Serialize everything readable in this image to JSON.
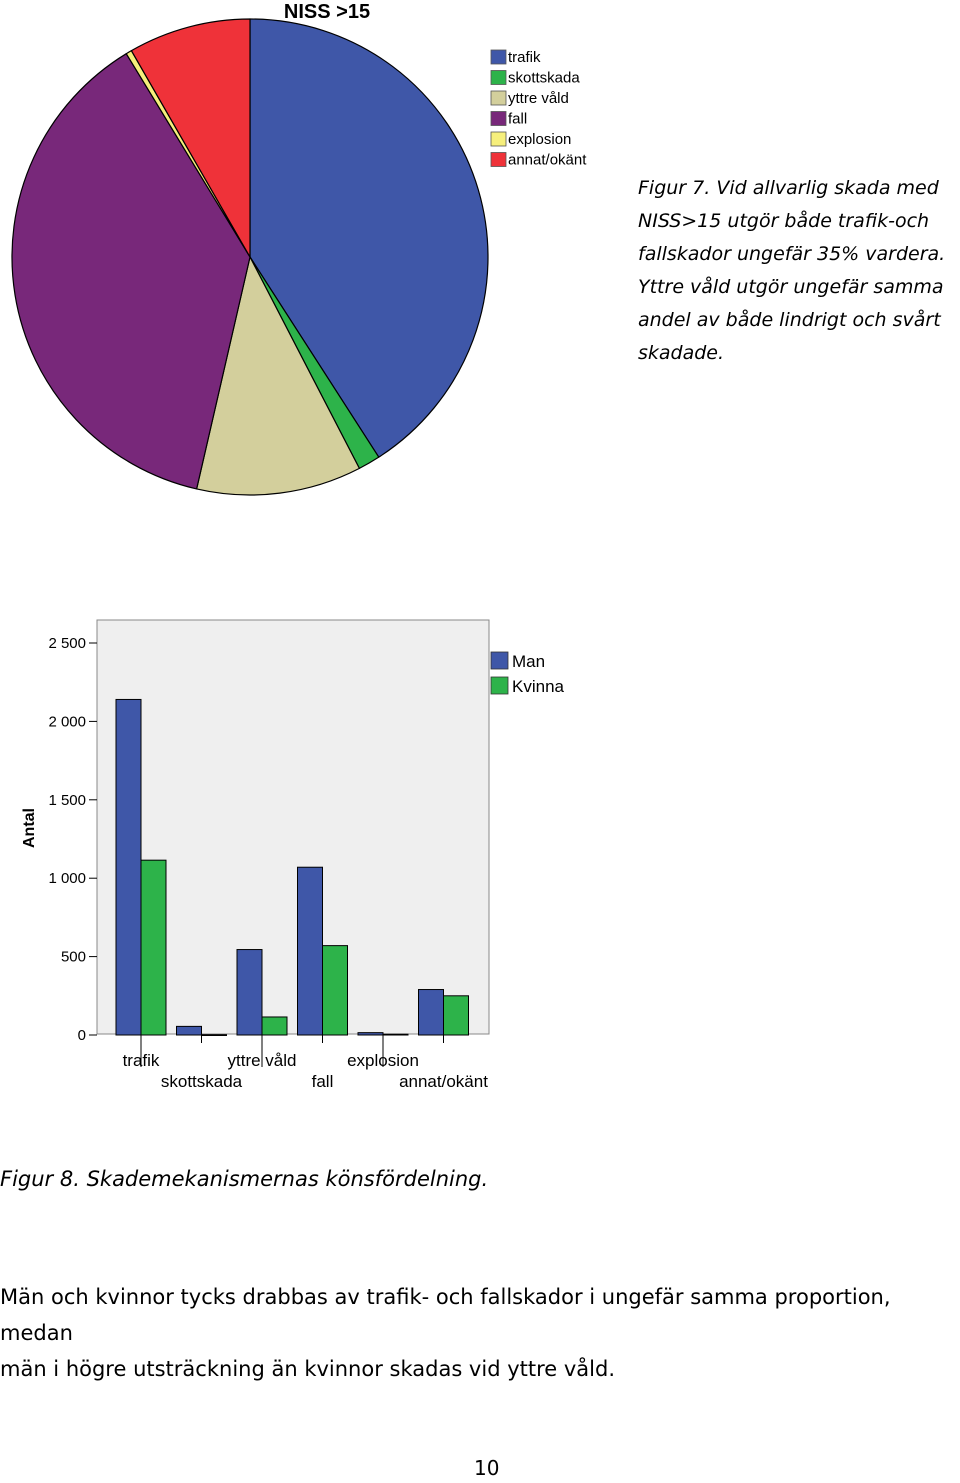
{
  "colors": {
    "trafik": "#3f57a8",
    "skottskada": "#2db34a",
    "yttre_vald": "#d3cf9c",
    "fall": "#78287a",
    "explosion": "#f6ef7c",
    "annat": "#ef3239",
    "man": "#3f57a8",
    "kvinna": "#2db34a",
    "plot_bg": "#efefef"
  },
  "chart_data": [
    {
      "type": "pie",
      "title": "NISS >15",
      "labels": [
        "trafik",
        "skottskada",
        "yttre våld",
        "fall",
        "explosion",
        "annat/okänt"
      ],
      "values": [
        40.9,
        1.5,
        11.2,
        37.7,
        0.4,
        8.3
      ],
      "legend_position": "top-right"
    },
    {
      "type": "bar",
      "ylabel": "Antal",
      "categories": [
        "trafik",
        "skottskada",
        "yttre våld",
        "fall",
        "explosion",
        "annat/okänt"
      ],
      "series": [
        {
          "name": "Man",
          "values": [
            2140,
            55,
            545,
            1070,
            15,
            290
          ]
        },
        {
          "name": "Kvinna",
          "values": [
            1115,
            2,
            115,
            570,
            5,
            250
          ]
        }
      ],
      "ylim": [
        0,
        2500
      ],
      "yticks": [
        0,
        500,
        1000,
        1500,
        2000,
        2500
      ],
      "ytick_labels": [
        "0",
        "500",
        "1 000",
        "1 500",
        "2 000",
        "2 500"
      ],
      "legend_position": "top-right"
    }
  ],
  "captions": {
    "figur7": [
      "Figur 7. Vid allvarlig skada med",
      "NISS>15 utgör både trafik-och",
      "fallskador ungefär 35% vardera.",
      "Yttre våld utgör ungefär samma",
      "andel av både lindrigt och svårt",
      "skadade."
    ],
    "figur8": "Figur 8. Skademekanismernas könsfördelning."
  },
  "body_text": [
    "Män och kvinnor tycks drabbas av trafik- och fallskador i ungefär samma proportion, medan",
    "män i högre utsträckning än kvinnor skadas vid yttre våld."
  ],
  "page_number": "10"
}
